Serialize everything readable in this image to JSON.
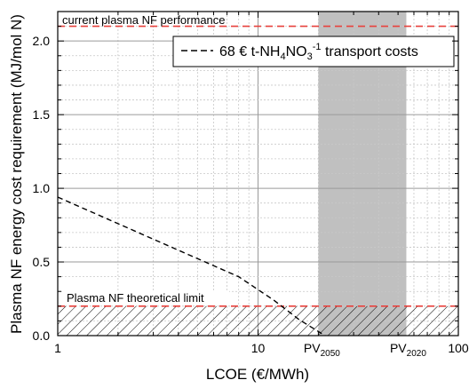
{
  "chart_data": {
    "type": "line",
    "title": "",
    "xlabel": "LCOE (€/MWh)",
    "ylabel": "Plasma NF energy cost requirement (MJ/mol N)",
    "xscale": "log",
    "xlim": [
      1,
      100
    ],
    "ylim": [
      0,
      2.2
    ],
    "xticks": [
      1,
      10,
      100
    ],
    "xtick_labels": [
      "1",
      "10",
      "100"
    ],
    "yticks": [
      0.0,
      0.5,
      1.0,
      1.5,
      2.0
    ],
    "ytick_labels": [
      "0.0",
      "0.5",
      "1.0",
      "1.5",
      "2.0"
    ],
    "grid": true,
    "legend_position": "top-right",
    "series": [
      {
        "name": "68 € t-NH4NO3-1 transport costs",
        "label_main": "68 € t-NH",
        "label_sub1": "4",
        "label_mid": "NO",
        "label_sub2": "3",
        "label_sup": "-1",
        "label_tail": " transport costs",
        "style": "dashed",
        "color": "#000000",
        "x": [
          1,
          2,
          4,
          8,
          12,
          16,
          21.6
        ],
        "y": [
          0.94,
          0.76,
          0.58,
          0.4,
          0.24,
          0.11,
          0.0
        ]
      }
    ],
    "reference_lines": [
      {
        "label": "current plasma NF performance",
        "y": 2.1,
        "color": "#e8413c",
        "style": "dashed"
      },
      {
        "label": "Plasma NF theoretical limit",
        "y": 0.2,
        "color": "#e8413c",
        "style": "dashed"
      }
    ],
    "hatched_region": {
      "y_from": 0.0,
      "y_to": 0.2
    },
    "shaded_band": {
      "x_from": 20,
      "x_to": 55,
      "color": "#c0c0c0",
      "left_label": "PV",
      "left_sub": "2050",
      "right_label": "PV",
      "right_sub": "2020"
    }
  }
}
